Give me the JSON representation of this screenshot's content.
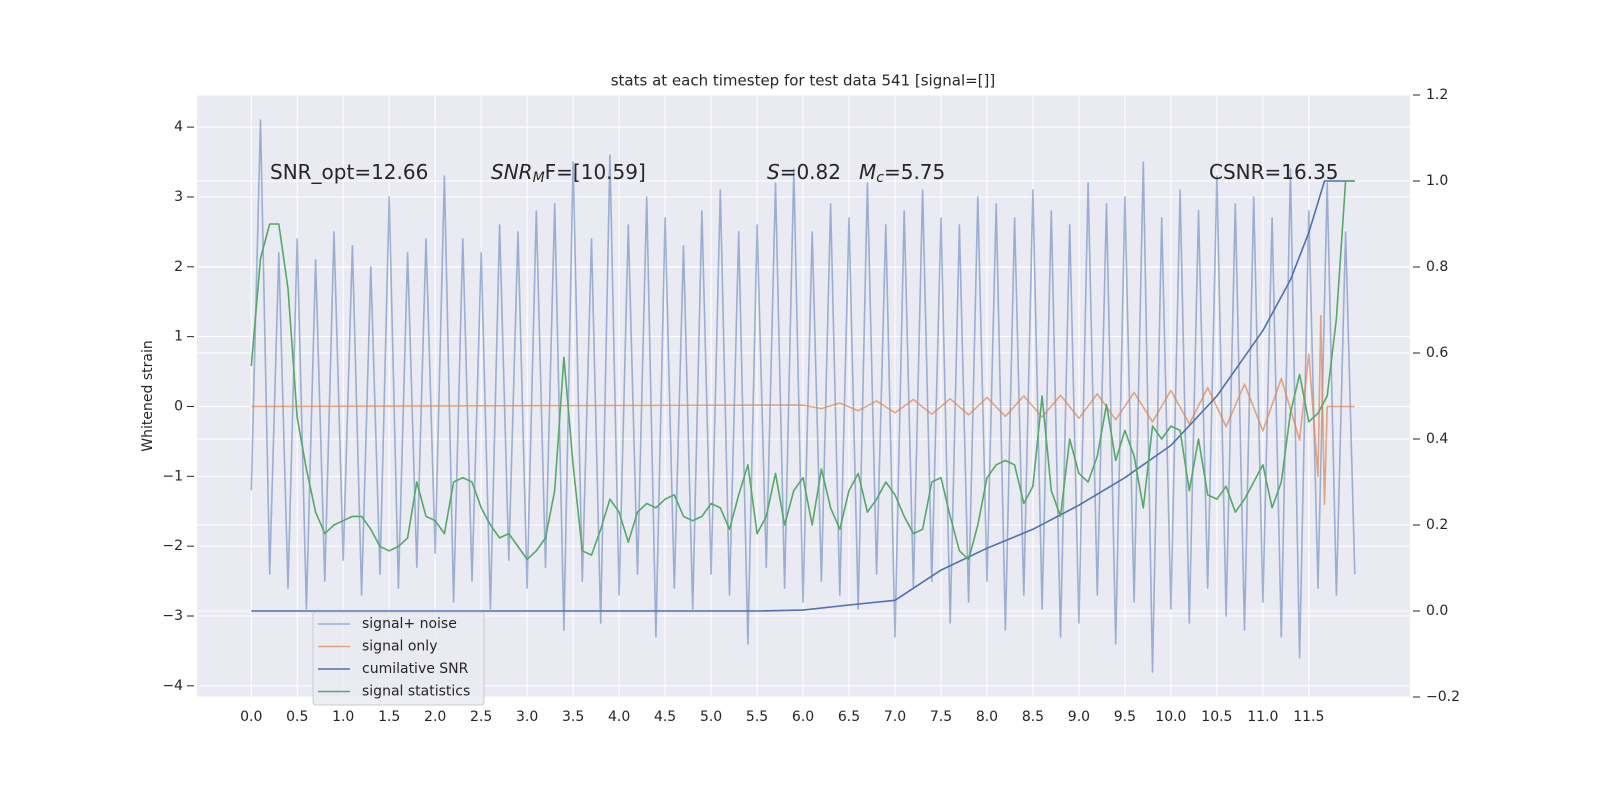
{
  "chart_data": {
    "type": "line",
    "title": "stats at each timestep for test data 541 [signal=[]]",
    "ylabel": "Whitened strain",
    "annotations": [
      [
        {
          "text": "SNR_opt=12.66"
        }
      ],
      [
        {
          "text": "SNR",
          "italic": true
        },
        {
          "text": "M",
          "italic": true,
          "sub": true
        },
        {
          "text": "F=[10.59]"
        }
      ],
      [
        {
          "text": "S",
          "italic": true
        },
        {
          "text": "=0.82"
        }
      ],
      [
        {
          "text": "M",
          "italic": true
        },
        {
          "text": "c",
          "italic": true,
          "sub": true
        },
        {
          "text": "=5.75"
        }
      ],
      [
        {
          "text": "CSNR=16.35"
        }
      ]
    ],
    "xlim": [
      -0.59,
      12.6
    ],
    "xticks": [
      {
        "value": 0,
        "label": "0.0"
      },
      {
        "value": 0.5,
        "label": "0.5"
      },
      {
        "value": 1,
        "label": "1.0"
      },
      {
        "value": 1.5,
        "label": "1.5"
      },
      {
        "value": 2,
        "label": "2.0"
      },
      {
        "value": 2.5,
        "label": "2.5"
      },
      {
        "value": 3,
        "label": "3.0"
      },
      {
        "value": 3.5,
        "label": "3.5"
      },
      {
        "value": 4,
        "label": "4.0"
      },
      {
        "value": 4.5,
        "label": "4.5"
      },
      {
        "value": 5,
        "label": "5.0"
      },
      {
        "value": 5.5,
        "label": "5.5"
      },
      {
        "value": 6,
        "label": "6.0"
      },
      {
        "value": 6.5,
        "label": "6.5"
      },
      {
        "value": 7,
        "label": "7.0"
      },
      {
        "value": 7.5,
        "label": "7.5"
      },
      {
        "value": 8,
        "label": "8.0"
      },
      {
        "value": 8.5,
        "label": "8.5"
      },
      {
        "value": 9,
        "label": "9.0"
      },
      {
        "value": 9.5,
        "label": "9.5"
      },
      {
        "value": 10,
        "label": "10.0"
      },
      {
        "value": 10.5,
        "label": "10.5"
      },
      {
        "value": 11,
        "label": "11.0"
      },
      {
        "value": 11.5,
        "label": "11.5"
      }
    ],
    "ylim": [
      -4.16,
      4.46
    ],
    "yticks": [
      {
        "value": -4,
        "label": "−4"
      },
      {
        "value": -3,
        "label": "−3"
      },
      {
        "value": -2,
        "label": "−2"
      },
      {
        "value": -1,
        "label": "−1"
      },
      0,
      1,
      2,
      3,
      4
    ],
    "y2lim": [
      -0.2,
      1.2
    ],
    "y2ticks": [
      {
        "value": -0.2,
        "label": "−0.2"
      },
      {
        "value": 0,
        "label": "0.0"
      },
      {
        "value": 0.2,
        "label": "0.2"
      },
      {
        "value": 0.4,
        "label": "0.4"
      },
      {
        "value": 0.6,
        "label": "0.6"
      },
      {
        "value": 0.8,
        "label": "0.8"
      },
      {
        "value": 1,
        "label": "1.0"
      },
      {
        "value": 1.2,
        "label": "1.2"
      }
    ],
    "grid": true,
    "legend": "lower left",
    "x": [
      0,
      0.1,
      0.2,
      0.3,
      0.4,
      0.5,
      0.6,
      0.7,
      0.8,
      0.9,
      1,
      1.1,
      1.2,
      1.3,
      1.4,
      1.5,
      1.6,
      1.7,
      1.8,
      1.9,
      2,
      2.1,
      2.2,
      2.3,
      2.4,
      2.5,
      2.6,
      2.7,
      2.8,
      2.9,
      3,
      3.1,
      3.2,
      3.3,
      3.4,
      3.5,
      3.6,
      3.7,
      3.8,
      3.9,
      4,
      4.1,
      4.2,
      4.3,
      4.4,
      4.5,
      4.6,
      4.7,
      4.8,
      4.9,
      5,
      5.1,
      5.2,
      5.3,
      5.4,
      5.5,
      5.6,
      5.7,
      5.8,
      5.9,
      6,
      6.1,
      6.2,
      6.3,
      6.4,
      6.5,
      6.6,
      6.7,
      6.8,
      6.9,
      7,
      7.1,
      7.2,
      7.3,
      7.4,
      7.5,
      7.6,
      7.7,
      7.8,
      7.9,
      8,
      8.1,
      8.2,
      8.3,
      8.4,
      8.5,
      8.6,
      8.7,
      8.8,
      8.9,
      9,
      9.1,
      9.2,
      9.3,
      9.4,
      9.5,
      9.6,
      9.7,
      9.8,
      9.9,
      10,
      10.1,
      10.2,
      10.3,
      10.4,
      10.5,
      10.6,
      10.7,
      10.8,
      10.9,
      11,
      11.1,
      11.2,
      11.3,
      11.4,
      11.5,
      11.6,
      11.7,
      11.8,
      11.9,
      12
    ],
    "series": [
      {
        "name": "signal+ noise",
        "color": "#4c72b0",
        "opacity": 0.5,
        "values": [
          -1.2,
          4.1,
          -2.4,
          2.2,
          -2.6,
          2.4,
          -2.9,
          2.1,
          -2.5,
          2.5,
          -2.2,
          2.3,
          -2.7,
          2.0,
          -2.4,
          3.0,
          -2.6,
          2.2,
          -2.3,
          2.4,
          -2.1,
          3.3,
          -2.8,
          2.4,
          -2.5,
          2.2,
          -2.9,
          2.6,
          -2.2,
          2.5,
          -2.6,
          2.8,
          -2.3,
          2.9,
          -3.2,
          3.5,
          -2.5,
          2.4,
          -3.1,
          3.6,
          -2.7,
          2.6,
          -2.4,
          3.0,
          -3.3,
          2.7,
          -2.6,
          2.3,
          -2.9,
          2.8,
          -2.4,
          3.1,
          -2.7,
          2.5,
          -3.4,
          2.6,
          -2.3,
          3.2,
          -2.6,
          3.4,
          -2.8,
          2.5,
          -2.5,
          2.9,
          -2.7,
          2.7,
          -2.9,
          3.2,
          -2.4,
          2.6,
          -3.3,
          2.8,
          -2.6,
          3.1,
          -2.5,
          2.7,
          -3.1,
          2.6,
          -2.8,
          3.0,
          -2.5,
          2.9,
          -3.2,
          2.7,
          -2.7,
          3.1,
          -2.9,
          2.8,
          -3.3,
          2.6,
          -3.1,
          3.2,
          -2.7,
          2.9,
          -3.4,
          3.0,
          -2.8,
          3.5,
          -3.8,
          2.7,
          -2.9,
          3.1,
          -3.1,
          2.8,
          -2.6,
          3.3,
          -3.0,
          2.9,
          -3.2,
          3.0,
          -2.8,
          2.7,
          -3.3,
          3.4,
          -3.6,
          2.8,
          -2.6,
          3.2,
          -2.7,
          2.5,
          -2.4
        ]
      },
      {
        "name": "signal only",
        "color": "#dd8452",
        "opacity": 0.7,
        "x": [
          0,
          6,
          6.2,
          6.4,
          6.6,
          6.8,
          7,
          7.2,
          7.4,
          7.6,
          7.8,
          8,
          8.2,
          8.4,
          8.6,
          8.8,
          9,
          9.2,
          9.4,
          9.6,
          9.8,
          10,
          10.2,
          10.4,
          10.6,
          10.8,
          11,
          11.2,
          11.4,
          11.5,
          11.6,
          11.63,
          11.67,
          11.7,
          12
        ],
        "values": [
          0,
          0.02,
          -0.03,
          0.05,
          -0.06,
          0.08,
          -0.09,
          0.1,
          -0.11,
          0.11,
          -0.12,
          0.13,
          -0.14,
          0.15,
          -0.15,
          0.16,
          -0.17,
          0.18,
          -0.19,
          0.2,
          -0.22,
          0.23,
          -0.25,
          0.27,
          -0.29,
          0.32,
          -0.35,
          0.4,
          -0.48,
          0.75,
          -1.0,
          1.3,
          -1.4,
          0,
          0
        ]
      },
      {
        "name": "cumilative SNR",
        "color": "#4c72b0",
        "axis": "y2",
        "x": [
          0,
          1,
          2,
          3,
          4,
          5,
          5.5,
          6,
          6.5,
          7,
          7.5,
          8,
          8.5,
          9,
          9.5,
          10,
          10.5,
          11,
          11.3,
          11.5,
          11.67,
          12
        ],
        "values": [
          0,
          0,
          0,
          0,
          0,
          0,
          0,
          0.002,
          0.014,
          0.025,
          0.095,
          0.146,
          0.19,
          0.246,
          0.31,
          0.385,
          0.5,
          0.652,
          0.77,
          0.88,
          1.0,
          1.0
        ]
      },
      {
        "name": "signal statistics",
        "color": "#55a868",
        "axis": "y2",
        "values": [
          0.57,
          0.82,
          0.9,
          0.9,
          0.75,
          0.45,
          0.33,
          0.23,
          0.18,
          0.2,
          0.21,
          0.22,
          0.22,
          0.19,
          0.15,
          0.14,
          0.15,
          0.17,
          0.3,
          0.22,
          0.21,
          0.18,
          0.3,
          0.31,
          0.3,
          0.24,
          0.2,
          0.17,
          0.18,
          0.15,
          0.12,
          0.14,
          0.17,
          0.28,
          0.59,
          0.34,
          0.14,
          0.13,
          0.19,
          0.26,
          0.23,
          0.16,
          0.23,
          0.25,
          0.24,
          0.26,
          0.27,
          0.22,
          0.21,
          0.22,
          0.25,
          0.24,
          0.19,
          0.27,
          0.34,
          0.18,
          0.22,
          0.32,
          0.2,
          0.28,
          0.31,
          0.2,
          0.33,
          0.24,
          0.19,
          0.28,
          0.32,
          0.23,
          0.26,
          0.3,
          0.27,
          0.22,
          0.18,
          0.19,
          0.3,
          0.31,
          0.22,
          0.14,
          0.12,
          0.2,
          0.31,
          0.34,
          0.35,
          0.34,
          0.25,
          0.29,
          0.5,
          0.28,
          0.22,
          0.4,
          0.32,
          0.3,
          0.36,
          0.48,
          0.35,
          0.42,
          0.36,
          0.24,
          0.43,
          0.4,
          0.43,
          0.42,
          0.28,
          0.4,
          0.27,
          0.26,
          0.29,
          0.23,
          0.26,
          0.3,
          0.34,
          0.24,
          0.3,
          0.46,
          0.55,
          0.44,
          0.46,
          0.5,
          0.68,
          1.0,
          1.0
        ]
      }
    ]
  }
}
